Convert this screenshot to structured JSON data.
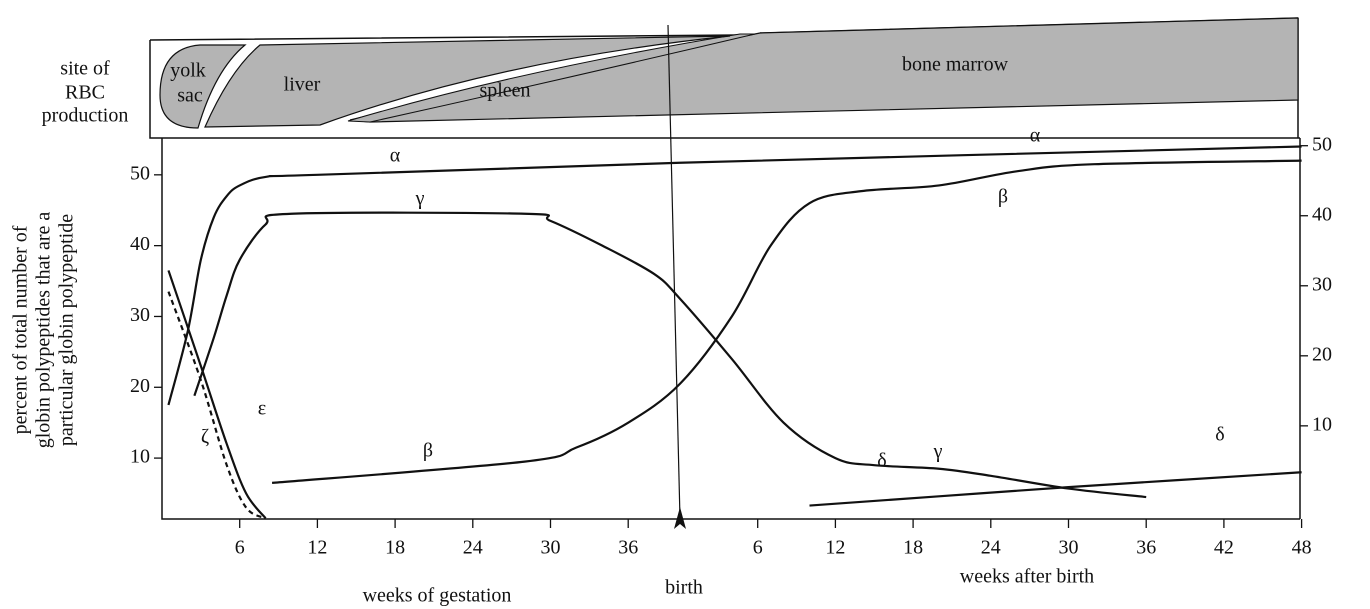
{
  "chart_data": {
    "type": "line",
    "production_sites": {
      "title_lines": [
        "site of",
        "RBC",
        "production"
      ],
      "labels": [
        "yolk",
        "sac",
        "liver",
        "spleen",
        "bone marrow"
      ]
    },
    "ylabel_lines": [
      "percent of total number of",
      "globin polypeptides that are a",
      "particular globin polypeptide"
    ],
    "xlabels": [
      "weeks of gestation",
      "birth",
      "weeks after birth"
    ],
    "birth_week": 40,
    "xlim": [
      0,
      88
    ],
    "xticks": [
      6,
      12,
      18,
      24,
      30,
      36,
      {
        "value": 46,
        "label": "6"
      },
      {
        "value": 52,
        "label": "12"
      },
      {
        "value": 58,
        "label": "18"
      },
      {
        "value": 64,
        "label": "24"
      },
      {
        "value": 70,
        "label": "30"
      },
      {
        "value": 76,
        "label": "36"
      },
      {
        "value": 82,
        "label": "42"
      },
      {
        "value": 88,
        "label": "48"
      }
    ],
    "ylim": [
      1.4,
      55.2
    ],
    "yticks": [
      10,
      20,
      30,
      40,
      50
    ],
    "y2lim": [
      -3.3,
      51.1
    ],
    "y2ticks": [
      10,
      20,
      30,
      40,
      50
    ],
    "series": [
      {
        "name": "α",
        "color": "#111111",
        "dashed": false,
        "x": [
          0.5,
          2,
          3,
          4,
          5,
          6,
          8,
          12,
          40,
          88
        ],
        "values": [
          17.5,
          28,
          38,
          44,
          47,
          48.5,
          49.7,
          50,
          51.7,
          54
        ]
      },
      {
        "name": "γ",
        "color": "#111111",
        "dashed": false,
        "x": [
          2.5,
          4,
          5,
          6,
          8,
          10,
          28,
          30,
          34,
          38,
          40,
          44,
          48,
          52,
          55,
          60,
          64,
          70,
          76
        ],
        "values": [
          18.8,
          27,
          33,
          38,
          43,
          44.5,
          44.5,
          43.5,
          40,
          36,
          32.5,
          24,
          15,
          10,
          9,
          8.5,
          7.5,
          5.7,
          4.5
        ]
      },
      {
        "name": "β",
        "color": "#111111",
        "dashed": false,
        "x": [
          8.5,
          28,
          32,
          36,
          40,
          44,
          47,
          50,
          54,
          60,
          66,
          72,
          88
        ],
        "values": [
          6.5,
          9.5,
          11.5,
          15,
          20.5,
          30,
          40,
          46,
          47.7,
          48.5,
          50.5,
          51.5,
          52
        ]
      },
      {
        "name": "δ",
        "color": "#111111",
        "dashed": false,
        "x": [
          50,
          60,
          70,
          88
        ],
        "values": [
          3.3,
          4.6,
          5.9,
          8
        ]
      },
      {
        "name": "ε",
        "color": "#111111",
        "dashed": false,
        "x": [
          0.5,
          3,
          5,
          6.5,
          8
        ],
        "values": [
          36.5,
          23,
          12,
          5,
          1.5
        ]
      },
      {
        "name": "ζ",
        "color": "#111111",
        "dashed": true,
        "x": [
          0.5,
          3,
          5,
          6.5,
          8
        ],
        "values": [
          33.5,
          21,
          9,
          3,
          1.5
        ]
      }
    ]
  }
}
